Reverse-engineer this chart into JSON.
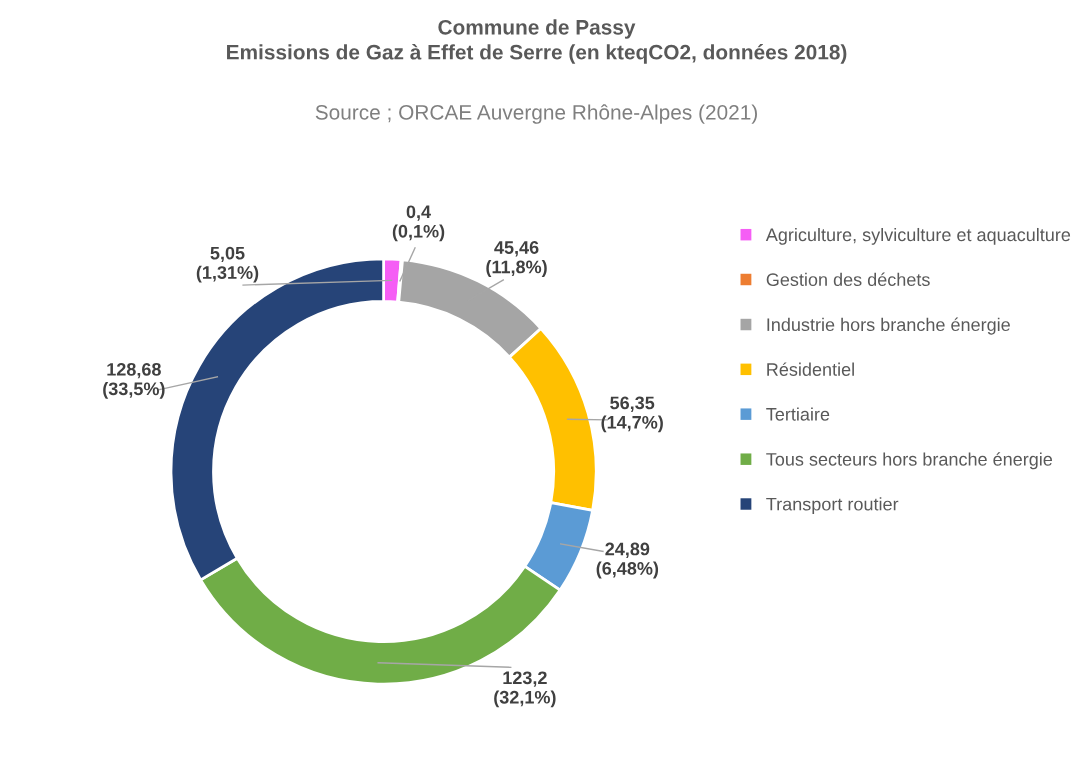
{
  "chart_data": {
    "type": "donut",
    "title": "Commune de Passy\nEmissions de Gaz à Effet de Serre (en kteqCO2, données 2018)",
    "subtitle": "Source ; ORCAE Auvergne Rhône-Alpes (2021)",
    "categories": [
      "Agriculture, sylviculture et aquaculture",
      "Gestion des déchets",
      "Industrie hors branche énergie",
      "Résidentiel",
      "Tertiaire",
      "Tous secteurs hors branche énergie",
      "Transport routier"
    ],
    "values": [
      5.05,
      0.4,
      45.46,
      56.35,
      24.89,
      123.2,
      128.68
    ],
    "colors": [
      "#f55ef5",
      "#ed7d31",
      "#a5a5a5",
      "#ffc000",
      "#5b9bd5",
      "#70ad47",
      "#264478"
    ],
    "value_labels": [
      "5,05\n(1,31%)",
      "0,4\n(0,1%)",
      "45,46\n(11,8%)",
      "56,35\n(14,7%)",
      "24,89\n(6,48%)",
      "123,2\n(32,1%)",
      "128,68\n(33,5%)"
    ],
    "legend": "right"
  }
}
